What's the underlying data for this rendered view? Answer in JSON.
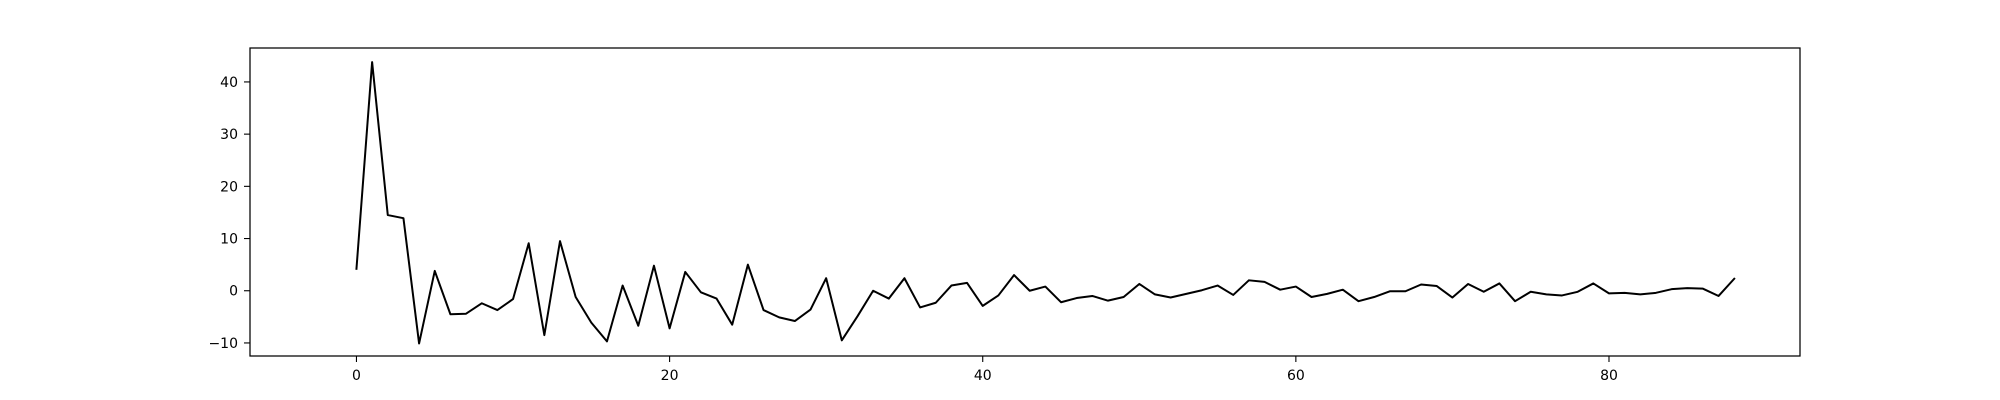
{
  "chart_data": {
    "type": "line",
    "title": "",
    "xlabel": "",
    "ylabel": "",
    "xlim": [
      -6.8,
      92.2
    ],
    "ylim": [
      -12.5,
      46.5
    ],
    "x_ticks": [
      0,
      20,
      40,
      60,
      80
    ],
    "y_ticks": [
      -10,
      0,
      10,
      20,
      30,
      40
    ],
    "grid": false,
    "legend": "none",
    "line_color": "#000000",
    "x": [
      0,
      1,
      2,
      3,
      4,
      5,
      6,
      7,
      8,
      9,
      10,
      11,
      12,
      13,
      14,
      15,
      16,
      17,
      18,
      19,
      20,
      21,
      22,
      23,
      24,
      25,
      26,
      27,
      28,
      29,
      30,
      31,
      32,
      33,
      34,
      35,
      36,
      37,
      38,
      39,
      40,
      41,
      42,
      43,
      44,
      45,
      46,
      47,
      48,
      49,
      50,
      51,
      52,
      53,
      54,
      55,
      56,
      57,
      58,
      59,
      60,
      61,
      62,
      63,
      64,
      65,
      66,
      67,
      68,
      69,
      70,
      71,
      72,
      73,
      74,
      75,
      76,
      77,
      78,
      79,
      80,
      81,
      82,
      83,
      84,
      85,
      86,
      87,
      88
    ],
    "series": [
      {
        "values": [
          4.2,
          43.8,
          14.5,
          13.9,
          -10.1,
          3.8,
          -4.5,
          -4.4,
          -2.4,
          -3.7,
          -1.6,
          9.1,
          -8.5,
          9.5,
          -1.2,
          -6.1,
          -9.7,
          1.0,
          -6.7,
          4.8,
          -7.2,
          3.6,
          -0.3,
          -1.5,
          -6.5,
          5.0,
          -3.7,
          -5.1,
          -5.8,
          -3.6,
          2.4,
          -9.5,
          -4.9,
          0.0,
          -1.5,
          2.4,
          -3.2,
          -2.3,
          1.0,
          1.5,
          -2.9,
          -0.9,
          3.0,
          0.0,
          0.8,
          -2.2,
          -1.4,
          -1.0,
          -1.9,
          -1.2,
          1.3,
          -0.7,
          -1.3,
          -0.6,
          0.1,
          1.0,
          -0.8,
          2.0,
          1.7,
          0.2,
          0.8,
          -1.2,
          -0.6,
          0.2,
          -2.0,
          -1.2,
          -0.1,
          -0.1,
          1.2,
          0.9,
          -1.3,
          1.3,
          -0.2,
          1.4,
          -2.0,
          -0.2,
          -0.7,
          -0.9,
          -0.2,
          1.4,
          -0.5,
          -0.4,
          -0.7,
          -0.4,
          0.3,
          0.5,
          0.4,
          -1.0,
          2.3
        ]
      }
    ]
  }
}
